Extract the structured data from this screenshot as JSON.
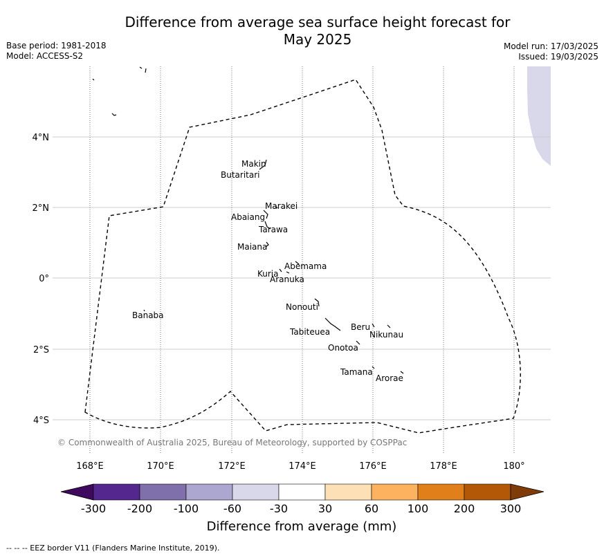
{
  "title_line1": "Difference from average sea surface height forecast for",
  "title_line2": "May 2025",
  "meta_left": [
    "Base period: 1981-2018",
    "Model: ACCESS-S2"
  ],
  "meta_right": [
    "Model run: 17/03/2025",
    "Issued: 19/03/2025"
  ],
  "map": {
    "lon_ticks": [
      "168°E",
      "170°E",
      "172°E",
      "174°E",
      "176°E",
      "178°E",
      "180°"
    ],
    "lat_ticks": [
      "4°N",
      "2°N",
      "0°",
      "2°S",
      "4°S"
    ],
    "islands": [
      "Makin",
      "Butaritari",
      "Marakei",
      "Abaiang",
      "Tarawa",
      "Maiana",
      "Abemama",
      "Kuria",
      "Aranuka",
      "Banaba",
      "Nonouti",
      "Beru",
      "Nikunau",
      "Tabiteuea",
      "Onotoa",
      "Tamana",
      "Arorae"
    ],
    "copyright": "© Commonwealth of Australia 2025, Bureau of Meteorology, supported by COSPPac"
  },
  "colorbar": {
    "title": "Difference from average (mm)",
    "labels": [
      "-300",
      "-200",
      "-100",
      "-60",
      "-30",
      "30",
      "60",
      "100",
      "200",
      "300"
    ],
    "colors": [
      "#3f0a5e",
      "#54278f",
      "#7f70ab",
      "#aca7d0",
      "#d8d8ea",
      "#ffffff",
      "#fee0b6",
      "#fdb25f",
      "#e1801b",
      "#b35806",
      "#7f3b08"
    ]
  },
  "footer": "--  --  -- EEZ border V11 (Flanders Marine Institute, 2019)."
}
